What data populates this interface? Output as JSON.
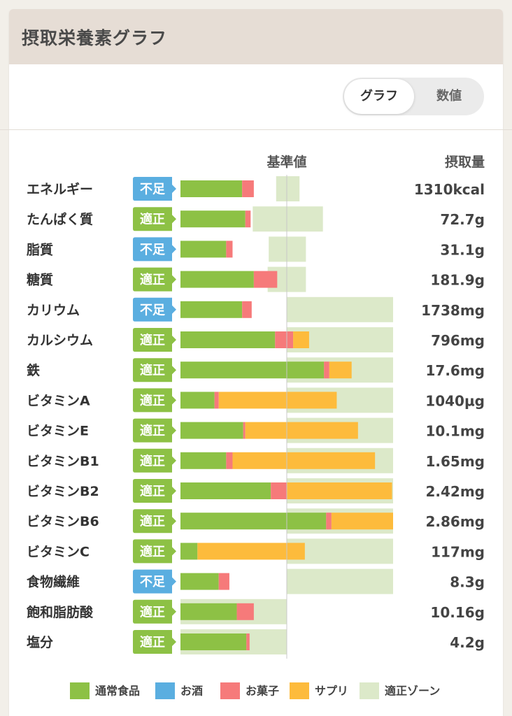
{
  "card": {
    "title": "摂取栄養素グラフ"
  },
  "toggle": {
    "graph_label": "グラフ",
    "numeric_label": "数値"
  },
  "chart_data": {
    "type": "bar",
    "stacked": true,
    "orientation": "horizontal",
    "header": {
      "reference": "基準値",
      "intake": "摂取量"
    },
    "series": [
      {
        "name": "通常食品",
        "color": "#8dc145"
      },
      {
        "name": "お酒",
        "color": "#5aaee0"
      },
      {
        "name": "お菓子",
        "color": "#f67a7a"
      },
      {
        "name": "サプリ",
        "color": "#fdbb3c"
      },
      {
        "name": "適正ゾーン",
        "color": "#dce9c9"
      }
    ],
    "status_colors": {
      "不足": "#5aaee0",
      "適正": "#8dc145"
    },
    "rows": [
      {
        "name": "エネルギー",
        "status": "不足",
        "intake": "1310kcal",
        "normal": 58,
        "sweets": 11,
        "supplement": 0,
        "zone": [
          90,
          112
        ]
      },
      {
        "name": "たんぱく質",
        "status": "適正",
        "intake": "72.7g",
        "normal": 61,
        "sweets": 5,
        "supplement": 0,
        "zone": [
          68,
          134
        ]
      },
      {
        "name": "脂質",
        "status": "不足",
        "intake": "31.1g",
        "normal": 43,
        "sweets": 6,
        "supplement": 0,
        "zone": [
          83,
          118
        ]
      },
      {
        "name": "糖質",
        "status": "適正",
        "intake": "181.9g",
        "normal": 69,
        "sweets": 22,
        "supplement": 0,
        "zone": [
          82,
          118
        ]
      },
      {
        "name": "カリウム",
        "status": "不足",
        "intake": "1738mg",
        "normal": 58,
        "sweets": 9,
        "supplement": 0,
        "zone": [
          100,
          200
        ]
      },
      {
        "name": "カルシウム",
        "status": "適正",
        "intake": "796mg",
        "normal": 89,
        "sweets": 17,
        "supplement": 15,
        "zone": [
          100,
          200
        ]
      },
      {
        "name": "鉄",
        "status": "適正",
        "intake": "17.6mg",
        "normal": 135,
        "sweets": 5,
        "supplement": 21,
        "zone": [
          100,
          200
        ]
      },
      {
        "name": "ビタミンA",
        "status": "適正",
        "intake": "1040µg",
        "normal": 32,
        "sweets": 4,
        "supplement": 111,
        "zone": [
          100,
          200
        ]
      },
      {
        "name": "ビタミンE",
        "status": "適正",
        "intake": "10.1mg",
        "normal": 59,
        "sweets": 2,
        "supplement": 106,
        "zone": [
          100,
          200
        ]
      },
      {
        "name": "ビタミンB1",
        "status": "適正",
        "intake": "1.65mg",
        "normal": 43,
        "sweets": 6,
        "supplement": 134,
        "zone": [
          100,
          200
        ]
      },
      {
        "name": "ビタミンB2",
        "status": "適正",
        "intake": "2.42mg",
        "normal": 85,
        "sweets": 15,
        "supplement": 99,
        "zone": [
          100,
          200
        ]
      },
      {
        "name": "ビタミンB6",
        "status": "適正",
        "intake": "2.86mg",
        "normal": 137,
        "sweets": 5,
        "supplement": 58,
        "zone": [
          100,
          200
        ]
      },
      {
        "name": "ビタミンC",
        "status": "適正",
        "intake": "117mg",
        "normal": 16,
        "sweets": 0,
        "supplement": 101,
        "zone": [
          100,
          200
        ]
      },
      {
        "name": "食物繊維",
        "status": "不足",
        "intake": "8.3g",
        "normal": 36,
        "sweets": 10,
        "supplement": 0,
        "zone": [
          100,
          200
        ]
      },
      {
        "name": "飽和脂肪酸",
        "status": "適正",
        "intake": "10.16g",
        "normal": 53,
        "sweets": 16,
        "supplement": 0,
        "zone": [
          0,
          100
        ]
      },
      {
        "name": "塩分",
        "status": "適正",
        "intake": "4.2g",
        "normal": 62,
        "sweets": 3,
        "supplement": 0,
        "zone": [
          0,
          100
        ]
      }
    ]
  }
}
